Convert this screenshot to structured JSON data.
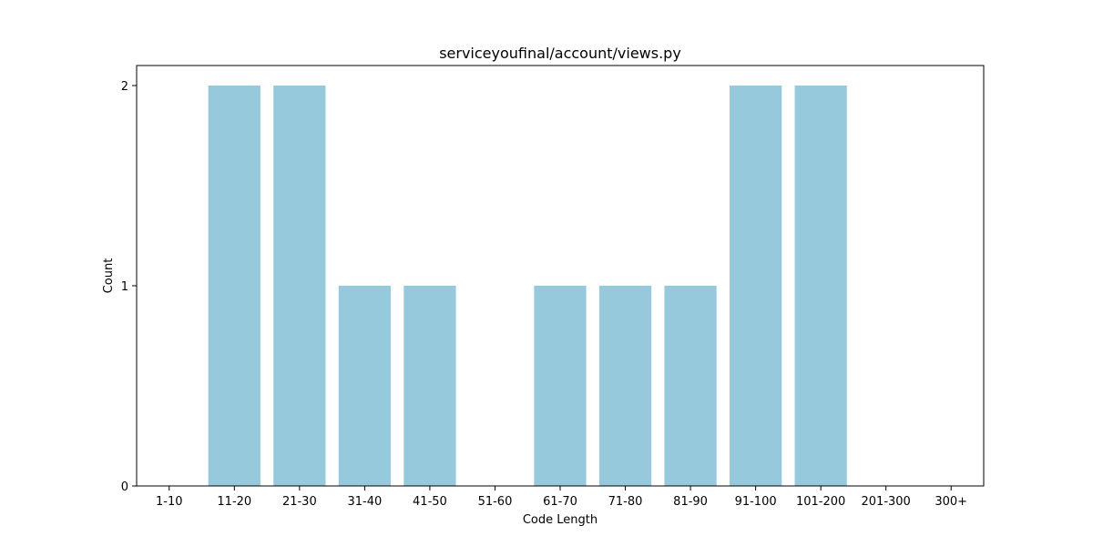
{
  "chart_data": {
    "type": "bar",
    "title": "serviceyoufinal/account/views.py",
    "xlabel": "Code Length",
    "ylabel": "Count",
    "categories": [
      "1-10",
      "11-20",
      "21-30",
      "31-40",
      "41-50",
      "51-60",
      "61-70",
      "71-80",
      "81-90",
      "91-100",
      "101-200",
      "201-300",
      "300+"
    ],
    "values": [
      0,
      2,
      2,
      1,
      1,
      0,
      1,
      1,
      1,
      2,
      2,
      0,
      0
    ],
    "yticks": [
      0,
      1,
      2
    ],
    "ylim": [
      0,
      2.1
    ],
    "bar_color": "#96c9dc",
    "grid": false,
    "legend": "none"
  }
}
